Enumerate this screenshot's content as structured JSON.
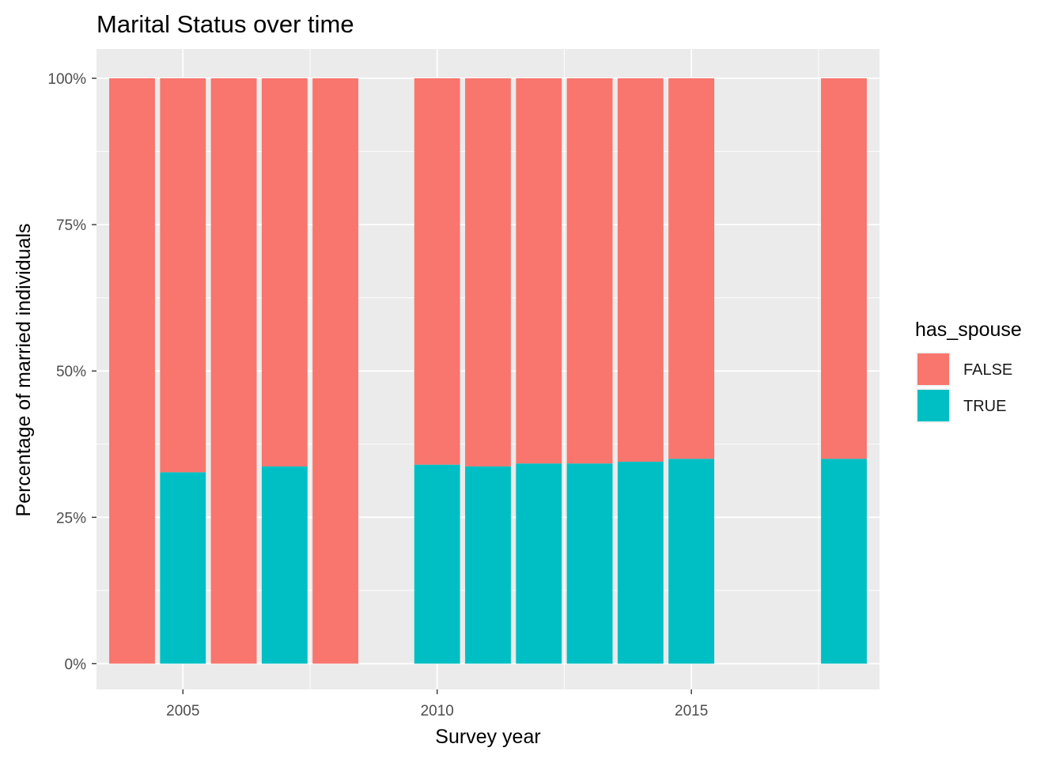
{
  "chart_data": {
    "type": "bar",
    "stacked": true,
    "normalized": true,
    "title": "Marital Status over time",
    "xlabel": "Survey year",
    "ylabel": "Percentage of married individuals",
    "x_ticks": [
      2005,
      2010,
      2015
    ],
    "x_tick_labels": [
      "2005",
      "2010",
      "2015"
    ],
    "xlim": [
      2003.3,
      2018.7
    ],
    "y_ticks": [
      0,
      0.25,
      0.5,
      0.75,
      1.0
    ],
    "y_tick_labels": [
      "0%",
      "25%",
      "50%",
      "75%",
      "100%"
    ],
    "ylim": [
      -0.044,
      1.05
    ],
    "grid": true,
    "background": "#ebebeb",
    "legend": {
      "title": "has_spouse",
      "position": "right",
      "entries": [
        {
          "label": "FALSE",
          "color": "#f8766d"
        },
        {
          "label": "TRUE",
          "color": "#00bfc4"
        }
      ]
    },
    "x": [
      2004,
      2005,
      2006,
      2007,
      2008,
      2010,
      2011,
      2012,
      2013,
      2014,
      2015,
      2018
    ],
    "series": [
      {
        "name": "FALSE",
        "color": "#f8766d",
        "values": [
          1.0,
          0.673,
          1.0,
          0.663,
          1.0,
          0.66,
          0.663,
          0.658,
          0.658,
          0.655,
          0.65,
          0.65
        ]
      },
      {
        "name": "TRUE",
        "color": "#00bfc4",
        "values": [
          0.0,
          0.327,
          0.0,
          0.337,
          0.0,
          0.34,
          0.337,
          0.342,
          0.342,
          0.345,
          0.35,
          0.35
        ]
      }
    ]
  }
}
